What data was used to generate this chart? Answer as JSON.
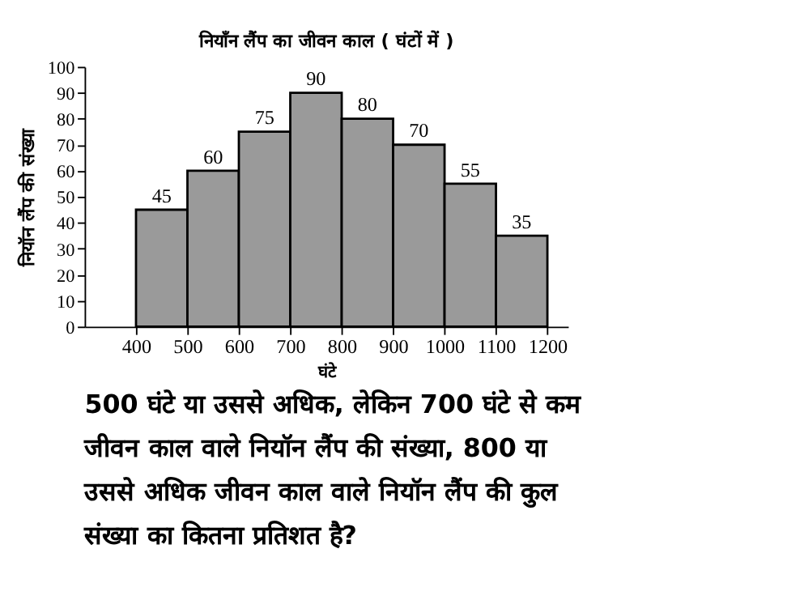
{
  "chart_data": {
    "type": "histogram",
    "title": "नियाँन लैंप का जीवन काल ( घंटों में )",
    "xlabel": "घंटे",
    "ylabel": "नियॉन लैंप की संख्या",
    "bins": [
      400,
      500,
      600,
      700,
      800,
      900,
      1000,
      1100,
      1200
    ],
    "values": [
      45,
      60,
      75,
      90,
      80,
      70,
      55,
      35
    ],
    "color": "#9a9a9a",
    "xlim": [
      300,
      1240
    ],
    "xticks": [
      400,
      500,
      600,
      700,
      800,
      900,
      1000,
      1100,
      1200
    ],
    "ylim": [
      0,
      100
    ],
    "yticks": [
      0,
      10,
      20,
      30,
      40,
      50,
      60,
      70,
      80,
      90,
      100
    ],
    "grid": false,
    "data_labels": true,
    "annotations": [
      "500 घंटे या उससे अधिक, लेकिन 700 घंटे से कम जीवन काल वाले नियॉन लैंप की संख्या, 800 या उससे अधिक जीवन काल वाले नियॉन लैंप की कुल संख्या का कितना प्रतिशत है?"
    ]
  }
}
